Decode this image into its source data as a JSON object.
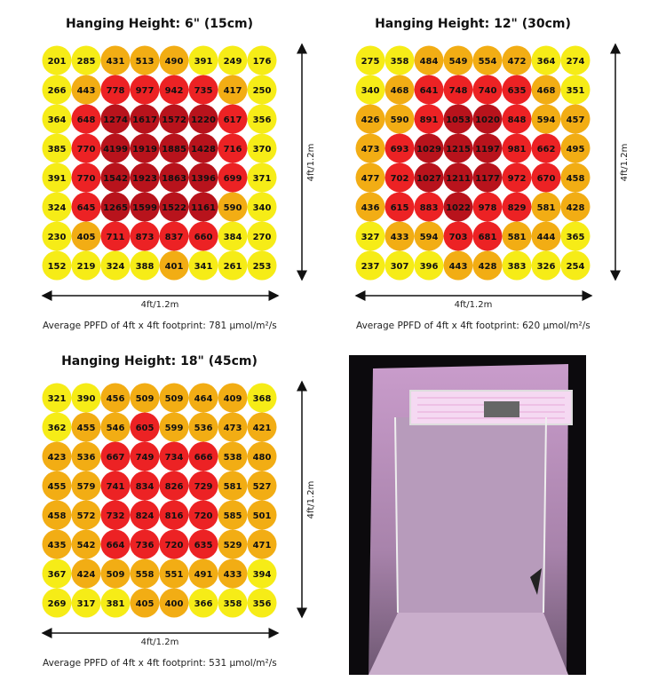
{
  "panels": [
    {
      "title": "Hanging Height: 6\" (15cm)",
      "width_label": "4ft/1.2m",
      "height_label": "4ft/1.2m",
      "average": "Average PPFD of 4ft x 4ft footprint: 781 µmol/m²/s",
      "grid": [
        [
          201,
          285,
          431,
          513,
          490,
          391,
          249,
          176
        ],
        [
          266,
          443,
          778,
          977,
          942,
          735,
          417,
          250
        ],
        [
          364,
          648,
          1274,
          1617,
          1572,
          1220,
          617,
          356
        ],
        [
          385,
          770,
          4199,
          1919,
          1885,
          1428,
          716,
          370
        ],
        [
          391,
          770,
          1542,
          1923,
          1863,
          1396,
          699,
          371
        ],
        [
          324,
          645,
          1265,
          1599,
          1522,
          1161,
          590,
          340
        ],
        [
          230,
          405,
          711,
          873,
          837,
          660,
          384,
          270
        ],
        [
          152,
          219,
          324,
          388,
          401,
          341,
          261,
          253
        ]
      ]
    },
    {
      "title": "Hanging Height: 12\" (30cm)",
      "width_label": "4ft/1.2m",
      "height_label": "4ft/1.2m",
      "average": "Average PPFD of 4ft x 4ft footprint: 620 µmol/m²/s",
      "grid": [
        [
          275,
          358,
          484,
          549,
          554,
          472,
          364,
          274
        ],
        [
          340,
          468,
          641,
          748,
          740,
          635,
          468,
          351
        ],
        [
          426,
          590,
          891,
          1053,
          1020,
          848,
          594,
          457
        ],
        [
          473,
          693,
          1029,
          1215,
          1197,
          981,
          662,
          495
        ],
        [
          477,
          702,
          1027,
          1211,
          1177,
          972,
          670,
          458
        ],
        [
          436,
          615,
          883,
          1022,
          978,
          829,
          581,
          428
        ],
        [
          327,
          433,
          594,
          703,
          681,
          581,
          444,
          365
        ],
        [
          237,
          307,
          396,
          443,
          428,
          383,
          326,
          254
        ]
      ]
    },
    {
      "title": "Hanging Height: 18\" (45cm)",
      "width_label": "4ft/1.2m",
      "height_label": "4ft/1.2m",
      "average": "Average PPFD of 4ft x 4ft footprint: 531 µmol/m²/s",
      "grid": [
        [
          321,
          390,
          456,
          509,
          509,
          464,
          409,
          368
        ],
        [
          362,
          455,
          546,
          605,
          599,
          536,
          473,
          421
        ],
        [
          423,
          536,
          667,
          749,
          734,
          666,
          538,
          480
        ],
        [
          455,
          579,
          741,
          834,
          826,
          729,
          581,
          527
        ],
        [
          458,
          572,
          732,
          824,
          816,
          720,
          585,
          501
        ],
        [
          435,
          542,
          664,
          736,
          720,
          635,
          529,
          471
        ],
        [
          367,
          424,
          509,
          558,
          551,
          491,
          433,
          394
        ],
        [
          269,
          317,
          381,
          405,
          400,
          366,
          358,
          356
        ]
      ]
    }
  ]
}
